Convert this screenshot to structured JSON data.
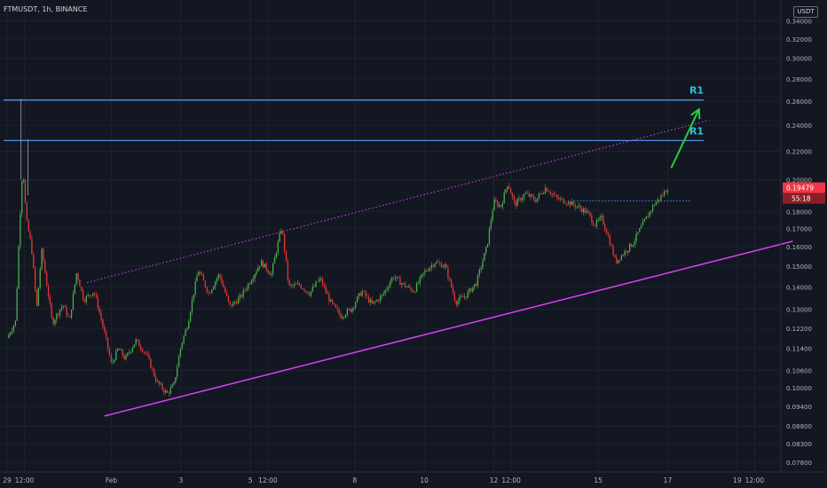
{
  "header": {
    "symbol": "FTMUSDT, 1h, BINANCE",
    "currency": "USDT"
  },
  "colors": {
    "background": "#131722",
    "up": "#4caf50",
    "down": "#e53935",
    "resistance": "#4a90e2",
    "r_label": "#26c6da",
    "channel": "#e040fb",
    "arrow": "#2ecc40",
    "price_tag": "#f23645"
  },
  "chart_data": {
    "type": "candlestick",
    "symbol": "FTMUSDT",
    "interval": "1h",
    "exchange": "BINANCE",
    "y_ticks": [
      "0.34000",
      "0.32000",
      "0.30000",
      "0.28000",
      "0.26000",
      "0.24000",
      "0.22000",
      "0.20000",
      "0.18000",
      "0.17000",
      "0.16000",
      "0.15000",
      "0.14000",
      "0.13000",
      "0.12200",
      "0.11400",
      "0.10600",
      "0.10000",
      "0.09400",
      "0.08800",
      "0.08300",
      "0.07800"
    ],
    "y_tick_values": [
      0.34,
      0.32,
      0.3,
      0.28,
      0.26,
      0.24,
      0.22,
      0.2,
      0.18,
      0.17,
      0.16,
      0.15,
      0.14,
      0.13,
      0.122,
      0.114,
      0.106,
      0.1,
      0.094,
      0.088,
      0.083,
      0.078
    ],
    "x_ticks": [
      "29",
      "12:00",
      "Feb",
      "3",
      "5",
      "12:00",
      "8",
      "10",
      "12",
      "12:00",
      "15",
      "17",
      "19",
      "12:00"
    ],
    "x_tick_times": [
      0,
      0.5,
      3,
      5,
      7,
      7.5,
      10,
      12,
      14,
      14.5,
      17,
      19,
      21,
      21.5
    ],
    "time_unit": "days since Jan 29",
    "price_series": [
      [
        0.0,
        0.118
      ],
      [
        0.25,
        0.125
      ],
      [
        0.45,
        0.21
      ],
      [
        0.55,
        0.175
      ],
      [
        0.7,
        0.16
      ],
      [
        0.85,
        0.13
      ],
      [
        1.0,
        0.158
      ],
      [
        1.15,
        0.14
      ],
      [
        1.3,
        0.124
      ],
      [
        1.6,
        0.132
      ],
      [
        1.8,
        0.125
      ],
      [
        2.0,
        0.147
      ],
      [
        2.2,
        0.134
      ],
      [
        2.5,
        0.138
      ],
      [
        2.8,
        0.12
      ],
      [
        3.0,
        0.108
      ],
      [
        3.2,
        0.114
      ],
      [
        3.4,
        0.11
      ],
      [
        3.7,
        0.117
      ],
      [
        4.0,
        0.112
      ],
      [
        4.3,
        0.102
      ],
      [
        4.6,
        0.098
      ],
      [
        4.8,
        0.101
      ],
      [
        5.0,
        0.115
      ],
      [
        5.2,
        0.124
      ],
      [
        5.5,
        0.148
      ],
      [
        5.8,
        0.137
      ],
      [
        6.1,
        0.146
      ],
      [
        6.4,
        0.131
      ],
      [
        6.7,
        0.135
      ],
      [
        7.0,
        0.143
      ],
      [
        7.3,
        0.152
      ],
      [
        7.6,
        0.146
      ],
      [
        7.9,
        0.171
      ],
      [
        8.1,
        0.14
      ],
      [
        8.4,
        0.141
      ],
      [
        8.7,
        0.137
      ],
      [
        9.0,
        0.144
      ],
      [
        9.3,
        0.133
      ],
      [
        9.6,
        0.127
      ],
      [
        9.9,
        0.13
      ],
      [
        10.2,
        0.138
      ],
      [
        10.5,
        0.132
      ],
      [
        10.8,
        0.136
      ],
      [
        11.1,
        0.145
      ],
      [
        11.4,
        0.141
      ],
      [
        11.7,
        0.138
      ],
      [
        12.0,
        0.147
      ],
      [
        12.3,
        0.152
      ],
      [
        12.6,
        0.15
      ],
      [
        12.9,
        0.133
      ],
      [
        13.2,
        0.136
      ],
      [
        13.5,
        0.142
      ],
      [
        13.8,
        0.16
      ],
      [
        14.0,
        0.186
      ],
      [
        14.2,
        0.183
      ],
      [
        14.4,
        0.198
      ],
      [
        14.6,
        0.184
      ],
      [
        14.9,
        0.191
      ],
      [
        15.2,
        0.187
      ],
      [
        15.5,
        0.195
      ],
      [
        15.8,
        0.188
      ],
      [
        16.1,
        0.186
      ],
      [
        16.4,
        0.183
      ],
      [
        16.7,
        0.179
      ],
      [
        16.9,
        0.172
      ],
      [
        17.1,
        0.176
      ],
      [
        17.3,
        0.165
      ],
      [
        17.5,
        0.152
      ],
      [
        17.7,
        0.156
      ],
      [
        18.0,
        0.162
      ],
      [
        18.3,
        0.173
      ],
      [
        18.6,
        0.184
      ],
      [
        18.85,
        0.19
      ],
      [
        19.0,
        0.195
      ]
    ],
    "last_price": "0.19479",
    "countdown": "55:18",
    "resistance_levels": [
      {
        "label": "R1",
        "price": 0.261
      },
      {
        "label": "R1",
        "price": 0.228
      }
    ],
    "support_line": {
      "from": [
        2.8,
        0.091
      ],
      "to": [
        22.6,
        0.163
      ]
    },
    "channel_top_line": {
      "from": [
        2.3,
        0.142
      ],
      "to": [
        20.2,
        0.244
      ]
    },
    "breakout_arrow": {
      "from": [
        19.1,
        0.208
      ],
      "to": [
        19.9,
        0.253
      ]
    }
  }
}
